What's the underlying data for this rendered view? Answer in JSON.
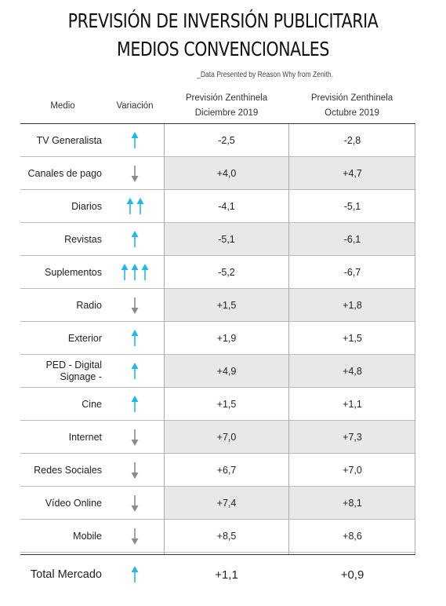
{
  "title_line1": "PREVISIÓN DE INVERSIÓN PUBLICITARIA",
  "title_line2": "MEDIOS CONVENCIONALES",
  "source": "_Data Presented by Reason Why from Zenith.",
  "colors": {
    "up": "#1fb8ea",
    "down": "#8a8a8a",
    "shade": "#e8e8e8"
  },
  "chart_data": {
    "type": "table",
    "columns": [
      "Medio",
      "Variación",
      "Previsión Zenthinela Diciembre 2019",
      "Previsión Zenthinela Octubre 2019"
    ],
    "headers": {
      "medio": "Medio",
      "variacion": "Variación",
      "dic_line1": "Previsión Zenthinela",
      "dic_line2": "Diciembre 2019",
      "oct_line1": "Previsión Zenthinela",
      "oct_line2": "Octubre 2019"
    },
    "rows": [
      {
        "medio": "TV Generalista",
        "variacion": {
          "direction": "up",
          "count": 1
        },
        "dic": "-2,5",
        "oct": "-2,8"
      },
      {
        "medio": "Canales de pago",
        "variacion": {
          "direction": "down",
          "count": 1
        },
        "dic": "+4,0",
        "oct": "+4,7"
      },
      {
        "medio": "Diarios",
        "variacion": {
          "direction": "up",
          "count": 2
        },
        "dic": "-4,1",
        "oct": "-5,1"
      },
      {
        "medio": "Revistas",
        "variacion": {
          "direction": "up",
          "count": 1
        },
        "dic": "-5,1",
        "oct": "-6,1"
      },
      {
        "medio": "Suplementos",
        "variacion": {
          "direction": "up",
          "count": 3
        },
        "dic": "-5,2",
        "oct": "-6,7"
      },
      {
        "medio": "Radio",
        "variacion": {
          "direction": "down",
          "count": 1
        },
        "dic": "+1,5",
        "oct": "+1,8"
      },
      {
        "medio": "Exterior",
        "variacion": {
          "direction": "up",
          "count": 1
        },
        "dic": "+1,9",
        "oct": "+1,5"
      },
      {
        "medio": "PED - Digital Signage -",
        "variacion": {
          "direction": "up",
          "count": 1
        },
        "dic": "+4,9",
        "oct": "+4,8"
      },
      {
        "medio": "Cine",
        "variacion": {
          "direction": "up",
          "count": 1
        },
        "dic": "+1,5",
        "oct": "+1,1"
      },
      {
        "medio": "Internet",
        "variacion": {
          "direction": "down",
          "count": 1
        },
        "dic": "+7,0",
        "oct": "+7,3"
      },
      {
        "medio": "Redes Sociales",
        "variacion": {
          "direction": "down",
          "count": 1
        },
        "dic": "+6,7",
        "oct": "+7,0"
      },
      {
        "medio": "Vídeo Online",
        "variacion": {
          "direction": "down",
          "count": 1
        },
        "dic": "+7,4",
        "oct": "+8,1"
      },
      {
        "medio": "Mobile",
        "variacion": {
          "direction": "down",
          "count": 1
        },
        "dic": "+8,5",
        "oct": "+8,6"
      }
    ],
    "total": {
      "medio": "Total Mercado",
      "variacion": {
        "direction": "up",
        "count": 1
      },
      "dic": "+1,1",
      "oct": "+0,9"
    }
  }
}
